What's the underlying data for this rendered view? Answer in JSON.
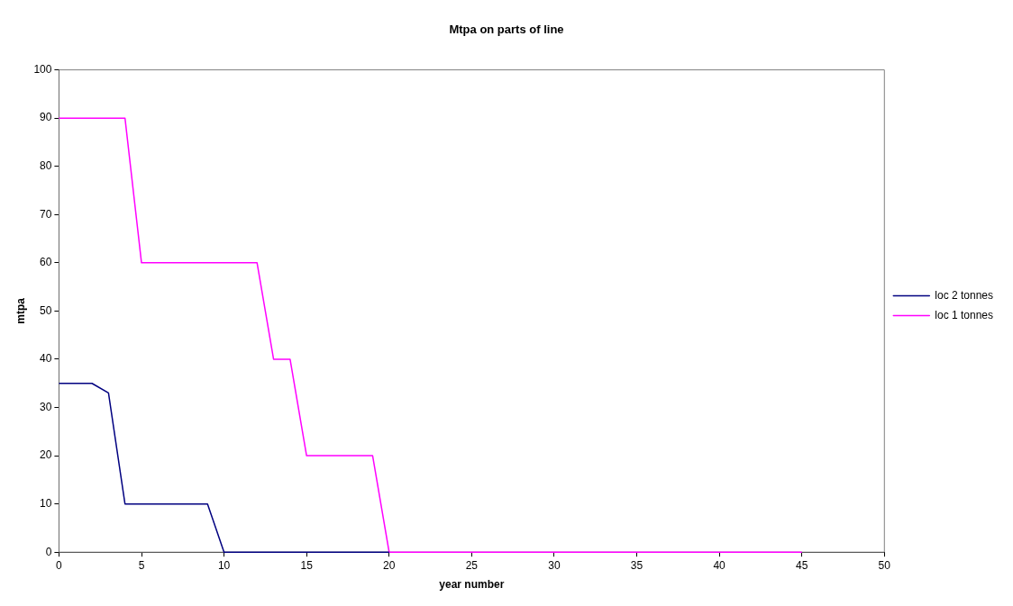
{
  "chart_data": {
    "type": "line",
    "title": "Mtpa on parts of line",
    "xlabel": "year number",
    "ylabel": "mtpa",
    "xlim": [
      0,
      50
    ],
    "xticks": [
      0,
      5,
      10,
      15,
      20,
      25,
      30,
      35,
      40,
      45,
      50
    ],
    "ylim": [
      0,
      100
    ],
    "yticks": [
      0,
      10,
      20,
      30,
      40,
      50,
      60,
      70,
      80,
      90,
      100
    ],
    "grid": false,
    "legend": "right",
    "marker": "none",
    "line_style": "solid",
    "series": [
      {
        "name": "loc 2 tonnes",
        "color": "#000080",
        "x": [
          0,
          1,
          2,
          3,
          4,
          5,
          6,
          7,
          8,
          9,
          10,
          11,
          12,
          13,
          14,
          15,
          16,
          17,
          18,
          19,
          20
        ],
        "values": [
          35,
          35,
          35,
          33,
          10,
          10,
          10,
          10,
          10,
          10,
          0,
          0,
          0,
          0,
          0,
          0,
          0,
          0,
          0,
          0,
          0
        ]
      },
      {
        "name": "loc 1 tonnes",
        "color": "#ff00ff",
        "x": [
          0,
          1,
          2,
          3,
          4,
          5,
          6,
          7,
          8,
          9,
          10,
          11,
          12,
          13,
          14,
          15,
          16,
          17,
          18,
          19,
          20,
          21,
          22,
          23,
          24,
          25,
          26,
          27,
          28,
          29,
          30,
          31,
          32,
          33,
          34,
          35,
          36,
          37,
          38,
          39,
          40,
          41,
          42,
          43,
          44,
          45
        ],
        "values": [
          90,
          90,
          90,
          90,
          90,
          60,
          60,
          60,
          60,
          60,
          60,
          60,
          60,
          40,
          40,
          20,
          20,
          20,
          20,
          20,
          0,
          0,
          0,
          0,
          0,
          0,
          0,
          0,
          0,
          0,
          0,
          0,
          0,
          0,
          0,
          0,
          0,
          0,
          0,
          0,
          0,
          0,
          0,
          0,
          0,
          0
        ]
      }
    ]
  }
}
